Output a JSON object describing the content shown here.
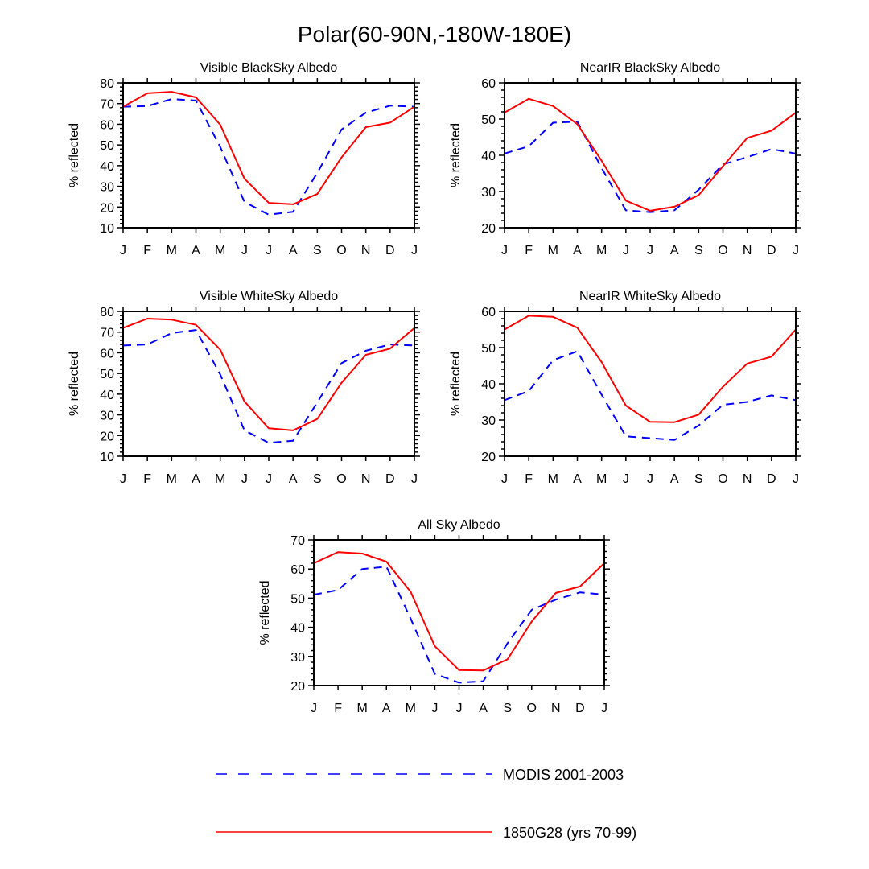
{
  "figure": {
    "title": "Polar(60-90N,-180W-180E)"
  },
  "chart_data": [
    {
      "type": "line",
      "title": "Visible BlackSky Albedo",
      "xlabel": "",
      "ylabel": "% reflected",
      "categories": [
        "J",
        "F",
        "M",
        "A",
        "M",
        "J",
        "J",
        "A",
        "S",
        "O",
        "N",
        "D",
        "J"
      ],
      "ylim": [
        10,
        80
      ],
      "yticks": [
        10,
        20,
        30,
        40,
        50,
        60,
        70,
        80
      ],
      "series": [
        {
          "name": "MODIS 2001-2003",
          "color": "#0000ff",
          "style": "dashed",
          "values": [
            68.5,
            68.8,
            72.2,
            71.5,
            49.0,
            22.5,
            16.3,
            17.7,
            36.5,
            57.5,
            65.6,
            69.0,
            68.5
          ]
        },
        {
          "name": "1850G28 (yrs 70-99)",
          "color": "#ff0000",
          "style": "solid",
          "values": [
            68.5,
            75.0,
            75.7,
            73.0,
            59.8,
            33.7,
            22.0,
            21.3,
            26.3,
            44.0,
            58.6,
            60.8,
            68.5
          ]
        }
      ]
    },
    {
      "type": "line",
      "title": "NearIR BlackSky Albedo",
      "xlabel": "",
      "ylabel": "% reflected",
      "categories": [
        "J",
        "F",
        "M",
        "A",
        "M",
        "J",
        "J",
        "A",
        "S",
        "O",
        "N",
        "D",
        "J"
      ],
      "ylim": [
        20,
        60
      ],
      "yticks": [
        20,
        30,
        40,
        50,
        60
      ],
      "series": [
        {
          "name": "MODIS 2001-2003",
          "color": "#0000ff",
          "style": "dashed",
          "values": [
            40.5,
            42.5,
            49.0,
            49.3,
            36.5,
            24.8,
            24.3,
            24.8,
            30.5,
            37.5,
            39.5,
            41.7,
            40.5
          ]
        },
        {
          "name": "1850G28 (yrs 70-99)",
          "color": "#ff0000",
          "style": "solid",
          "values": [
            51.8,
            55.6,
            53.6,
            48.6,
            38.5,
            27.5,
            24.7,
            25.8,
            29.0,
            37.0,
            44.8,
            46.8,
            51.8
          ]
        }
      ]
    },
    {
      "type": "line",
      "title": "Visible WhiteSky Albedo",
      "xlabel": "",
      "ylabel": "% reflected",
      "categories": [
        "J",
        "F",
        "M",
        "A",
        "M",
        "J",
        "J",
        "A",
        "S",
        "O",
        "N",
        "D",
        "J"
      ],
      "ylim": [
        10,
        80
      ],
      "yticks": [
        10,
        20,
        30,
        40,
        50,
        60,
        70,
        80
      ],
      "series": [
        {
          "name": "MODIS 2001-2003",
          "color": "#0000ff",
          "style": "dashed",
          "values": [
            63.5,
            64.0,
            69.5,
            71.0,
            49.5,
            22.5,
            16.5,
            17.5,
            36.0,
            55.0,
            61.0,
            64.0,
            63.5
          ]
        },
        {
          "name": "1850G28 (yrs 70-99)",
          "color": "#ff0000",
          "style": "solid",
          "values": [
            72.0,
            76.5,
            76.0,
            73.5,
            61.5,
            36.5,
            23.5,
            22.5,
            28.0,
            45.5,
            59.0,
            62.0,
            72.0
          ]
        }
      ]
    },
    {
      "type": "line",
      "title": "NearIR WhiteSky Albedo",
      "xlabel": "",
      "ylabel": "% reflected",
      "categories": [
        "J",
        "F",
        "M",
        "A",
        "M",
        "J",
        "J",
        "A",
        "S",
        "O",
        "N",
        "D",
        "J"
      ],
      "ylim": [
        20,
        60
      ],
      "yticks": [
        20,
        30,
        40,
        50,
        60
      ],
      "series": [
        {
          "name": "MODIS 2001-2003",
          "color": "#0000ff",
          "style": "dashed",
          "values": [
            35.5,
            38.0,
            46.5,
            49.0,
            37.0,
            25.5,
            25.0,
            24.5,
            28.5,
            34.2,
            35.0,
            36.8,
            35.5
          ]
        },
        {
          "name": "1850G28 (yrs 70-99)",
          "color": "#ff0000",
          "style": "solid",
          "values": [
            55.0,
            58.8,
            58.5,
            55.5,
            46.0,
            34.0,
            29.5,
            29.4,
            31.5,
            39.2,
            45.6,
            47.5,
            55.0
          ]
        }
      ]
    },
    {
      "type": "line",
      "title": "All Sky Albedo",
      "xlabel": "",
      "ylabel": "% reflected",
      "categories": [
        "J",
        "F",
        "M",
        "A",
        "M",
        "J",
        "J",
        "A",
        "S",
        "O",
        "N",
        "D",
        "J"
      ],
      "ylim": [
        20,
        70
      ],
      "yticks": [
        20,
        30,
        40,
        50,
        60,
        70
      ],
      "series": [
        {
          "name": "MODIS 2001-2003",
          "color": "#0000ff",
          "style": "dashed",
          "values": [
            51.2,
            52.8,
            60.0,
            60.8,
            43.0,
            24.0,
            21.0,
            21.5,
            34.5,
            46.0,
            49.5,
            52.0,
            51.2
          ]
        },
        {
          "name": "1850G28 (yrs 70-99)",
          "color": "#ff0000",
          "style": "solid",
          "values": [
            62.0,
            65.8,
            65.3,
            62.5,
            52.2,
            33.5,
            25.3,
            25.2,
            29.0,
            42.0,
            51.8,
            54.0,
            62.0
          ]
        }
      ]
    }
  ],
  "legend": {
    "items": [
      {
        "label": "MODIS 2001-2003",
        "color": "#0000ff",
        "style": "dashed"
      },
      {
        "label": "1850G28 (yrs 70-99)",
        "color": "#ff0000",
        "style": "solid"
      }
    ]
  }
}
